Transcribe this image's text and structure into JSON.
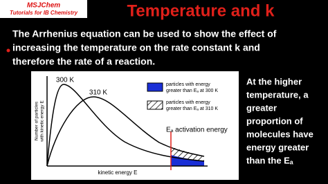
{
  "logo": {
    "name": "MSJChem",
    "tagline": "Tutorials for IB Chemistry"
  },
  "title": "Temperature and k",
  "intro": {
    "lines": [
      "The Arrhenius equation can be used to show the effect of",
      "increasing the temperature on the rate constant k and",
      "therefore the rate of a reaction."
    ]
  },
  "diagram": {
    "y_axis_label": {
      "lines": [
        "Number of particles",
        "with kinetic energy E"
      ]
    },
    "x_axis_label": "kinetic energy E",
    "curves": [
      "300 K",
      "310 K"
    ],
    "legend": [
      {
        "lines": [
          "particles with energy",
          "greater than Eₐ at 300 K"
        ]
      },
      {
        "lines": [
          "particles with energy",
          "greater than Eₐ at 310 K"
        ]
      }
    ],
    "activation_label": "Eₐ activation energy"
  },
  "side_text": {
    "lines": [
      "At the higher",
      "temperature, a",
      "greater",
      "proportion of",
      "molecules have",
      "energy greater",
      "than the Eₐ"
    ]
  }
}
